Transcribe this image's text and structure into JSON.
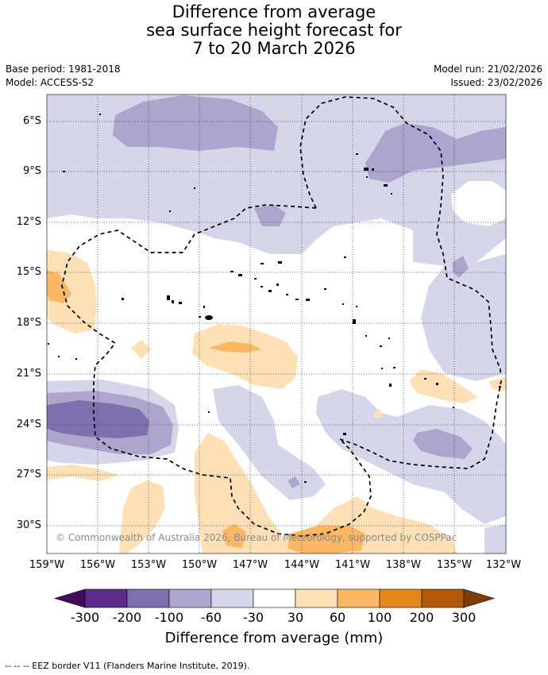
{
  "title": {
    "line1": "Difference from average",
    "line2": "sea surface height forecast for",
    "line3": "7 to 20 March 2026"
  },
  "meta": {
    "base_period": "Base period: 1981-2018",
    "model": "Model: ACCESS-S2",
    "model_run": "Model run: 21/02/2026",
    "issued": "Issued: 23/02/2026"
  },
  "map": {
    "lat_labels": [
      "6°S",
      "9°S",
      "12°S",
      "15°S",
      "18°S",
      "21°S",
      "24°S",
      "27°S",
      "30°S"
    ],
    "lon_labels": [
      "159°W",
      "156°W",
      "153°W",
      "150°W",
      "147°W",
      "144°W",
      "141°W",
      "138°W",
      "135°W",
      "132°W"
    ],
    "lon_range": [
      -159,
      -132
    ],
    "lat_range": [
      -31.5,
      -4.5
    ],
    "credit": "© Commonwealth of Australia 2026, Bureau of Meteorology, supported by COSPPac"
  },
  "colorbar": {
    "labels": [
      "-300",
      "-200",
      "-100",
      "-60",
      "-30",
      "30",
      "60",
      "100",
      "200",
      "300"
    ],
    "colors": [
      "#3f0d5c",
      "#5b2a8a",
      "#7f6fae",
      "#aea5cf",
      "#d6d6ea",
      "#ffffff",
      "#fde0b6",
      "#fbb763",
      "#e48a1a",
      "#b35a0a",
      "#7f3b08"
    ],
    "title": "Difference from average (mm)"
  },
  "palette": {
    "blue1": "#d6d6ea",
    "blue2": "#aea5cf",
    "blue3": "#7f6fae",
    "orange1": "#fde0b6",
    "orange2": "#fbb763"
  },
  "footer": {
    "legend_text": "--  --  -- EEZ border V11 (Flanders Marine Institute, 2019)."
  }
}
